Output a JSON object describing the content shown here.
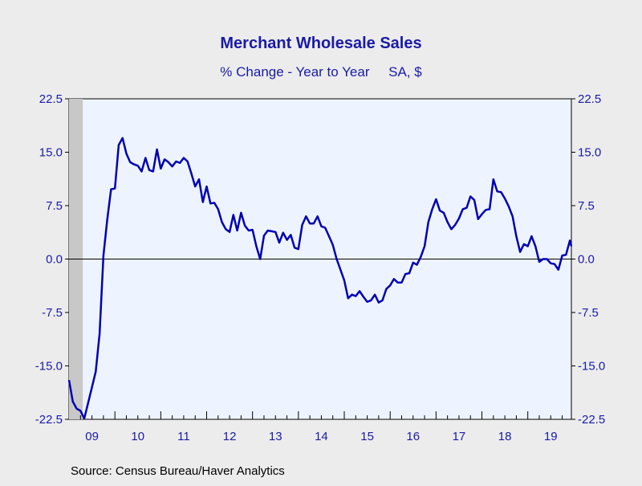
{
  "chart_data": {
    "type": "line",
    "title": "Merchant Wholesale Sales",
    "subtitle": "% Change - Year to Year     SA, $",
    "source": "Source:  Census Bureau/Haver Analytics",
    "ylim": [
      -22.5,
      22.5
    ],
    "yticks": [
      "22.5",
      "15.0",
      "7.5",
      "0.0",
      "-7.5",
      "-15.0",
      "-22.5"
    ],
    "ytick_values": [
      22.5,
      15,
      7.5,
      0,
      -7.5,
      -15,
      -22.5
    ],
    "xlim": [
      2009.0,
      2019.95
    ],
    "x_tick_labels": [
      {
        "label": "09",
        "x": 2009.5
      },
      {
        "label": "10",
        "x": 2010.5
      },
      {
        "label": "11",
        "x": 2011.5
      },
      {
        "label": "12",
        "x": 2012.5
      },
      {
        "label": "13",
        "x": 2013.5
      },
      {
        "label": "14",
        "x": 2014.5
      },
      {
        "label": "15",
        "x": 2015.5
      },
      {
        "label": "16",
        "x": 2016.5
      },
      {
        "label": "17",
        "x": 2017.5
      },
      {
        "label": "18",
        "x": 2018.5
      },
      {
        "label": "19",
        "x": 2019.5
      }
    ],
    "recession": [
      2009.0,
      2009.3
    ],
    "zero_line": true,
    "colors": {
      "background": "#ececec",
      "plot_area": "#eef4ff",
      "line": "#0000b4",
      "text": "#1a1aa6",
      "recession": "#c8c8c8"
    },
    "series": [
      {
        "color": "#0000b4",
        "points": [
          [
            2009.0,
            -17.0
          ],
          [
            2009.083,
            -20.0
          ],
          [
            2009.167,
            -21.0
          ],
          [
            2009.25,
            -21.3
          ],
          [
            2009.333,
            -22.4
          ],
          [
            2009.417,
            -20.2
          ],
          [
            2009.5,
            -18.0
          ],
          [
            2009.583,
            -15.8
          ],
          [
            2009.667,
            -10.5
          ],
          [
            2009.75,
            0.5
          ],
          [
            2009.833,
            5.5
          ],
          [
            2009.917,
            9.8
          ],
          [
            2010.0,
            9.9
          ],
          [
            2010.083,
            16.0
          ],
          [
            2010.167,
            17.0
          ],
          [
            2010.25,
            14.8
          ],
          [
            2010.333,
            13.6
          ],
          [
            2010.417,
            13.3
          ],
          [
            2010.5,
            13.1
          ],
          [
            2010.583,
            12.3
          ],
          [
            2010.667,
            14.2
          ],
          [
            2010.75,
            12.5
          ],
          [
            2010.833,
            12.3
          ],
          [
            2010.917,
            15.4
          ],
          [
            2011.0,
            12.7
          ],
          [
            2011.083,
            14.0
          ],
          [
            2011.167,
            13.6
          ],
          [
            2011.25,
            13.0
          ],
          [
            2011.333,
            13.7
          ],
          [
            2011.417,
            13.5
          ],
          [
            2011.5,
            14.2
          ],
          [
            2011.583,
            13.7
          ],
          [
            2011.667,
            12.0
          ],
          [
            2011.75,
            10.2
          ],
          [
            2011.833,
            11.2
          ],
          [
            2011.917,
            8.0
          ],
          [
            2012.0,
            10.2
          ],
          [
            2012.083,
            7.8
          ],
          [
            2012.167,
            7.9
          ],
          [
            2012.25,
            7.0
          ],
          [
            2012.333,
            5.2
          ],
          [
            2012.417,
            4.2
          ],
          [
            2012.5,
            3.8
          ],
          [
            2012.583,
            6.2
          ],
          [
            2012.667,
            4.0
          ],
          [
            2012.75,
            6.5
          ],
          [
            2012.833,
            4.7
          ],
          [
            2012.917,
            4.0
          ],
          [
            2013.0,
            4.1
          ],
          [
            2013.083,
            1.8
          ],
          [
            2013.167,
            0.0
          ],
          [
            2013.25,
            3.3
          ],
          [
            2013.333,
            4.0
          ],
          [
            2013.417,
            3.9
          ],
          [
            2013.5,
            3.8
          ],
          [
            2013.583,
            2.3
          ],
          [
            2013.667,
            3.7
          ],
          [
            2013.75,
            2.7
          ],
          [
            2013.833,
            3.4
          ],
          [
            2013.917,
            1.6
          ],
          [
            2014.0,
            1.4
          ],
          [
            2014.083,
            4.8
          ],
          [
            2014.167,
            6.0
          ],
          [
            2014.25,
            5.0
          ],
          [
            2014.333,
            5.0
          ],
          [
            2014.417,
            6.0
          ],
          [
            2014.5,
            4.6
          ],
          [
            2014.583,
            4.4
          ],
          [
            2014.667,
            3.2
          ],
          [
            2014.75,
            2.0
          ],
          [
            2014.833,
            0.0
          ],
          [
            2014.917,
            -1.5
          ],
          [
            2015.0,
            -3.0
          ],
          [
            2015.083,
            -5.5
          ],
          [
            2015.167,
            -5.0
          ],
          [
            2015.25,
            -5.2
          ],
          [
            2015.333,
            -4.5
          ],
          [
            2015.417,
            -5.3
          ],
          [
            2015.5,
            -6.0
          ],
          [
            2015.583,
            -5.8
          ],
          [
            2015.667,
            -5.0
          ],
          [
            2015.75,
            -6.1
          ],
          [
            2015.833,
            -5.8
          ],
          [
            2015.917,
            -4.2
          ],
          [
            2016.0,
            -3.7
          ],
          [
            2016.083,
            -2.8
          ],
          [
            2016.167,
            -3.3
          ],
          [
            2016.25,
            -3.3
          ],
          [
            2016.333,
            -2.1
          ],
          [
            2016.417,
            -2.0
          ],
          [
            2016.5,
            -0.5
          ],
          [
            2016.583,
            -0.8
          ],
          [
            2016.667,
            0.3
          ],
          [
            2016.75,
            1.8
          ],
          [
            2016.833,
            5.2
          ],
          [
            2016.917,
            7.0
          ],
          [
            2017.0,
            8.4
          ],
          [
            2017.083,
            6.8
          ],
          [
            2017.167,
            6.5
          ],
          [
            2017.25,
            5.2
          ],
          [
            2017.333,
            4.2
          ],
          [
            2017.417,
            4.8
          ],
          [
            2017.5,
            5.7
          ],
          [
            2017.583,
            7.0
          ],
          [
            2017.667,
            7.2
          ],
          [
            2017.75,
            8.8
          ],
          [
            2017.833,
            8.3
          ],
          [
            2017.917,
            5.6
          ],
          [
            2018.0,
            6.3
          ],
          [
            2018.083,
            6.9
          ],
          [
            2018.167,
            7.0
          ],
          [
            2018.25,
            11.2
          ],
          [
            2018.333,
            9.5
          ],
          [
            2018.417,
            9.4
          ],
          [
            2018.5,
            8.5
          ],
          [
            2018.583,
            7.4
          ],
          [
            2018.667,
            6.0
          ],
          [
            2018.75,
            3.2
          ],
          [
            2018.833,
            1.0
          ],
          [
            2018.917,
            2.1
          ],
          [
            2019.0,
            1.8
          ],
          [
            2019.083,
            3.2
          ],
          [
            2019.167,
            1.8
          ],
          [
            2019.25,
            -0.4
          ],
          [
            2019.333,
            0.0
          ],
          [
            2019.417,
            0.0
          ],
          [
            2019.5,
            -0.6
          ],
          [
            2019.583,
            -0.7
          ],
          [
            2019.667,
            -1.5
          ],
          [
            2019.75,
            0.5
          ],
          [
            2019.833,
            0.6
          ],
          [
            2019.917,
            2.6
          ],
          [
            2019.95,
            1.8
          ]
        ]
      }
    ]
  }
}
